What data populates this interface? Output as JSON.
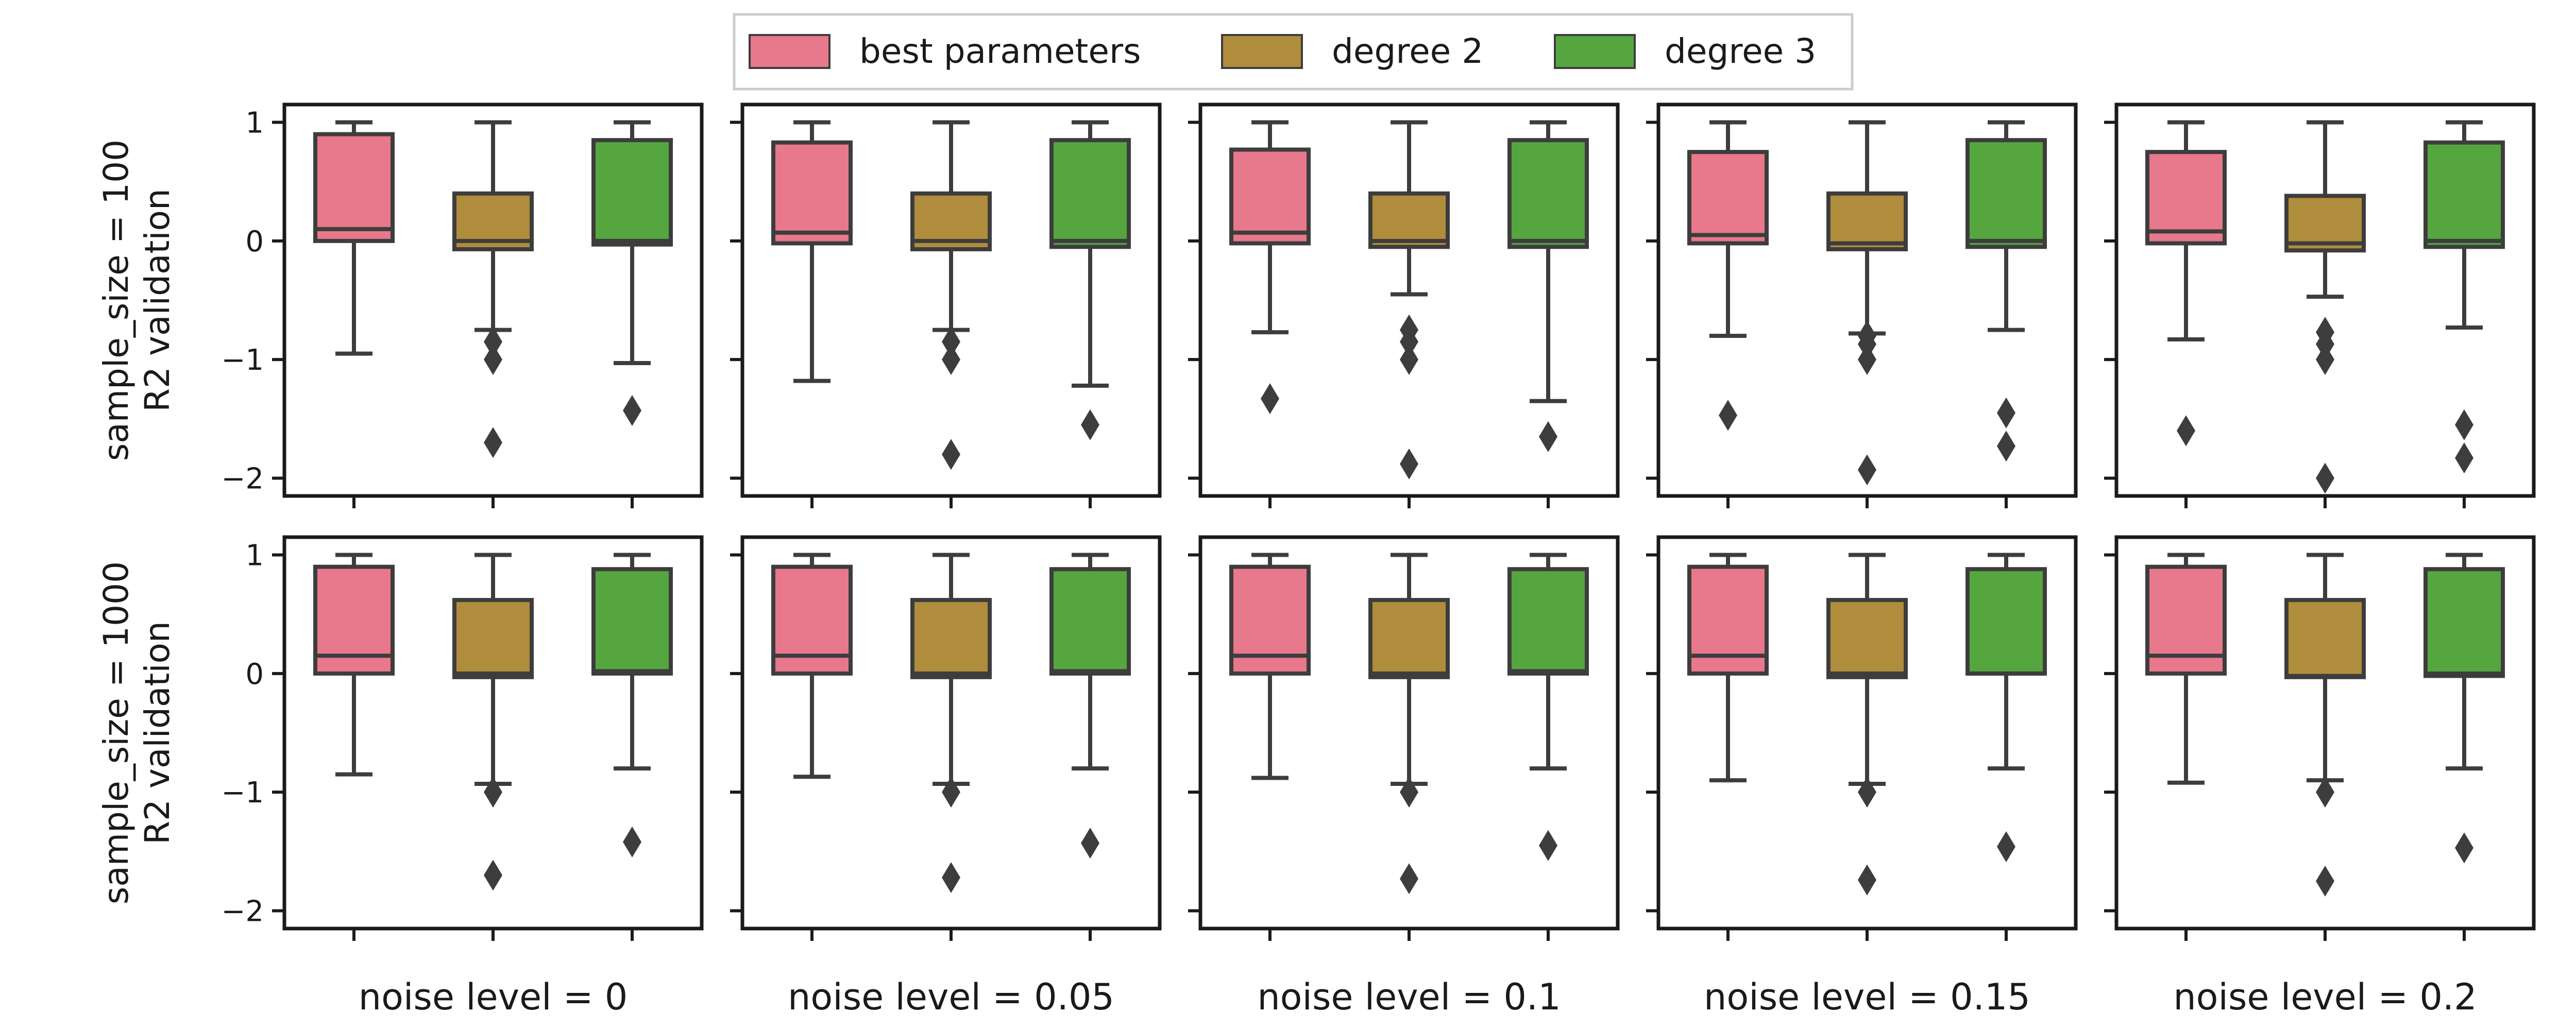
{
  "colors": {
    "best parameters": "#e8788b",
    "degree 2": "#b08d3c",
    "degree 3": "#55a63f",
    "line": "#3d3d3d",
    "axes": "#1a1a1a"
  },
  "legend": {
    "items": [
      "best parameters",
      "degree 2",
      "degree 3"
    ],
    "placement": "top-center"
  },
  "y_axis_label_lines": {
    "row0": [
      "sample_size = 100",
      "R2 validation"
    ],
    "row1": [
      "sample_size = 1000",
      "R2 validation"
    ]
  },
  "column_labels": [
    "noise level = 0",
    "noise level = 0.05",
    "noise level = 0.1",
    "noise level = 0.15",
    "noise level = 0.2"
  ],
  "y_ticks": [
    "1",
    "0",
    "−1",
    "−2"
  ],
  "chart_data": {
    "type": "box",
    "grid": false,
    "ylim": [
      -2.15,
      1.15
    ],
    "yticks": [
      1,
      0,
      -1,
      -2
    ],
    "series": [
      "best parameters",
      "degree 2",
      "degree 3"
    ],
    "panels": [
      {
        "row": 0,
        "col": 0,
        "boxes": [
          {
            "series": "best parameters",
            "whislo": -0.95,
            "q1": 0.0,
            "med": 0.1,
            "q3": 0.9,
            "whishi": 1.0,
            "fliers": []
          },
          {
            "series": "degree 2",
            "whislo": -0.75,
            "q1": -0.07,
            "med": 0.0,
            "q3": 0.4,
            "whishi": 1.0,
            "fliers": [
              -0.85,
              -1.0,
              -1.7
            ]
          },
          {
            "series": "degree 3",
            "whislo": -1.03,
            "q1": -0.03,
            "med": 0.0,
            "q3": 0.85,
            "whishi": 1.0,
            "fliers": [
              -1.43
            ]
          }
        ]
      },
      {
        "row": 0,
        "col": 1,
        "boxes": [
          {
            "series": "best parameters",
            "whislo": -1.18,
            "q1": -0.02,
            "med": 0.07,
            "q3": 0.83,
            "whishi": 1.0,
            "fliers": []
          },
          {
            "series": "degree 2",
            "whislo": -0.75,
            "q1": -0.07,
            "med": 0.0,
            "q3": 0.4,
            "whishi": 1.0,
            "fliers": [
              -0.85,
              -1.0,
              -1.8
            ]
          },
          {
            "series": "degree 3",
            "whislo": -1.22,
            "q1": -0.05,
            "med": 0.0,
            "q3": 0.85,
            "whishi": 1.0,
            "fliers": [
              -1.55
            ]
          }
        ]
      },
      {
        "row": 0,
        "col": 2,
        "boxes": [
          {
            "series": "best parameters",
            "whislo": -0.77,
            "q1": -0.02,
            "med": 0.07,
            "q3": 0.77,
            "whishi": 1.0,
            "fliers": [
              -1.33
            ]
          },
          {
            "series": "degree 2",
            "whislo": -0.45,
            "q1": -0.05,
            "med": 0.0,
            "q3": 0.4,
            "whishi": 1.0,
            "fliers": [
              -0.75,
              -0.85,
              -1.0,
              -1.88
            ]
          },
          {
            "series": "degree 3",
            "whislo": -1.35,
            "q1": -0.05,
            "med": 0.0,
            "q3": 0.85,
            "whishi": 1.0,
            "fliers": [
              -1.65
            ]
          }
        ]
      },
      {
        "row": 0,
        "col": 3,
        "boxes": [
          {
            "series": "best parameters",
            "whislo": -0.8,
            "q1": -0.02,
            "med": 0.05,
            "q3": 0.75,
            "whishi": 1.0,
            "fliers": [
              -1.47
            ]
          },
          {
            "series": "degree 2",
            "whislo": -0.78,
            "q1": -0.07,
            "med": -0.02,
            "q3": 0.4,
            "whishi": 1.0,
            "fliers": [
              -0.8,
              -0.87,
              -1.0,
              -1.93
            ]
          },
          {
            "series": "degree 3",
            "whislo": -0.75,
            "q1": -0.05,
            "med": 0.0,
            "q3": 0.85,
            "whishi": 1.0,
            "fliers": [
              -1.45,
              -1.73
            ]
          }
        ]
      },
      {
        "row": 0,
        "col": 4,
        "boxes": [
          {
            "series": "best parameters",
            "whislo": -0.83,
            "q1": -0.02,
            "med": 0.08,
            "q3": 0.75,
            "whishi": 1.0,
            "fliers": [
              -1.6
            ]
          },
          {
            "series": "degree 2",
            "whislo": -0.47,
            "q1": -0.08,
            "med": -0.02,
            "q3": 0.38,
            "whishi": 1.0,
            "fliers": [
              -0.77,
              -0.87,
              -1.0,
              -2.0
            ]
          },
          {
            "series": "degree 3",
            "whislo": -0.73,
            "q1": -0.05,
            "med": 0.0,
            "q3": 0.83,
            "whishi": 1.0,
            "fliers": [
              -1.55,
              -1.83
            ]
          }
        ]
      },
      {
        "row": 1,
        "col": 0,
        "boxes": [
          {
            "series": "best parameters",
            "whislo": -0.85,
            "q1": 0.0,
            "med": 0.15,
            "q3": 0.9,
            "whishi": 1.0,
            "fliers": []
          },
          {
            "series": "degree 2",
            "whislo": -0.93,
            "q1": -0.03,
            "med": 0.0,
            "q3": 0.62,
            "whishi": 1.0,
            "fliers": [
              -1.0,
              -1.7
            ]
          },
          {
            "series": "degree 3",
            "whislo": -0.8,
            "q1": 0.0,
            "med": 0.02,
            "q3": 0.88,
            "whishi": 1.0,
            "fliers": [
              -1.42
            ]
          }
        ]
      },
      {
        "row": 1,
        "col": 1,
        "boxes": [
          {
            "series": "best parameters",
            "whislo": -0.87,
            "q1": 0.0,
            "med": 0.15,
            "q3": 0.9,
            "whishi": 1.0,
            "fliers": []
          },
          {
            "series": "degree 2",
            "whislo": -0.93,
            "q1": -0.03,
            "med": 0.0,
            "q3": 0.62,
            "whishi": 1.0,
            "fliers": [
              -1.0,
              -1.72
            ]
          },
          {
            "series": "degree 3",
            "whislo": -0.8,
            "q1": 0.0,
            "med": 0.02,
            "q3": 0.88,
            "whishi": 1.0,
            "fliers": [
              -1.43
            ]
          }
        ]
      },
      {
        "row": 1,
        "col": 2,
        "boxes": [
          {
            "series": "best parameters",
            "whislo": -0.88,
            "q1": 0.0,
            "med": 0.15,
            "q3": 0.9,
            "whishi": 1.0,
            "fliers": []
          },
          {
            "series": "degree 2",
            "whislo": -0.93,
            "q1": -0.03,
            "med": 0.0,
            "q3": 0.62,
            "whishi": 1.0,
            "fliers": [
              -1.0,
              -1.73
            ]
          },
          {
            "series": "degree 3",
            "whislo": -0.8,
            "q1": 0.0,
            "med": 0.02,
            "q3": 0.88,
            "whishi": 1.0,
            "fliers": [
              -1.45
            ]
          }
        ]
      },
      {
        "row": 1,
        "col": 3,
        "boxes": [
          {
            "series": "best parameters",
            "whislo": -0.9,
            "q1": 0.0,
            "med": 0.15,
            "q3": 0.9,
            "whishi": 1.0,
            "fliers": []
          },
          {
            "series": "degree 2",
            "whislo": -0.93,
            "q1": -0.03,
            "med": 0.0,
            "q3": 0.62,
            "whishi": 1.0,
            "fliers": [
              -1.0,
              -1.74
            ]
          },
          {
            "series": "degree 3",
            "whislo": -0.8,
            "q1": 0.0,
            "med": 0.0,
            "q3": 0.88,
            "whishi": 1.0,
            "fliers": [
              -1.46
            ]
          }
        ]
      },
      {
        "row": 1,
        "col": 4,
        "boxes": [
          {
            "series": "best parameters",
            "whislo": -0.92,
            "q1": 0.0,
            "med": 0.15,
            "q3": 0.9,
            "whishi": 1.0,
            "fliers": []
          },
          {
            "series": "degree 2",
            "whislo": -0.9,
            "q1": -0.03,
            "med": -0.02,
            "q3": 0.62,
            "whishi": 1.0,
            "fliers": [
              -1.0,
              -1.75
            ]
          },
          {
            "series": "degree 3",
            "whislo": -0.8,
            "q1": -0.02,
            "med": 0.0,
            "q3": 0.88,
            "whishi": 1.0,
            "fliers": [
              -1.47
            ]
          }
        ]
      }
    ]
  }
}
